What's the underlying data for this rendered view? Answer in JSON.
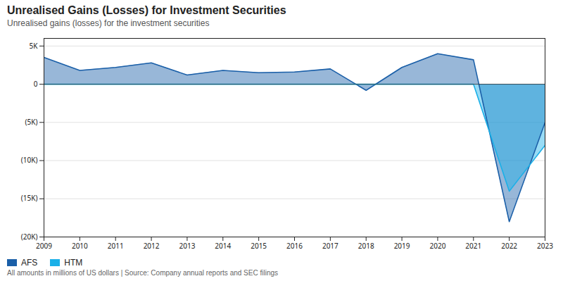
{
  "chart_data": {
    "type": "area",
    "title": "Unrealised Gains (Losses) for Investment Securities",
    "subtitle": "Unrealised gains (losses) for the investment securities",
    "caption": "All amounts in millions of US dollars | Source: Company annual reports and SEC filings",
    "x": [
      2009,
      2010,
      2011,
      2012,
      2013,
      2014,
      2015,
      2016,
      2017,
      2018,
      2019,
      2020,
      2021,
      2022,
      2023
    ],
    "series": [
      {
        "name": "AFS",
        "color": "#1a5fa8",
        "values": [
          3500,
          1800,
          2200,
          2800,
          1200,
          1800,
          1500,
          1600,
          2000,
          -800,
          2200,
          4000,
          3200,
          -18000,
          -5000
        ]
      },
      {
        "name": "HTM",
        "color": "#1ab0e8",
        "values": [
          0,
          0,
          0,
          0,
          0,
          0,
          0,
          0,
          0,
          0,
          0,
          0,
          0,
          -14000,
          -8000
        ]
      }
    ],
    "xlim": [
      2009,
      2023
    ],
    "xticks": [
      2009,
      2010,
      2011,
      2012,
      2013,
      2014,
      2015,
      2016,
      2017,
      2018,
      2019,
      2020,
      2021,
      2022,
      2023
    ],
    "ylim": [
      -20000,
      6000
    ],
    "yticks": [
      {
        "value": -20000,
        "label": "(20K)"
      },
      {
        "value": -15000,
        "label": "(15K)"
      },
      {
        "value": -10000,
        "label": "(10K)"
      },
      {
        "value": -5000,
        "label": "(5K)"
      },
      0,
      {
        "value": 5000,
        "label": "5K"
      }
    ],
    "grid": true,
    "legend": "bottom"
  }
}
